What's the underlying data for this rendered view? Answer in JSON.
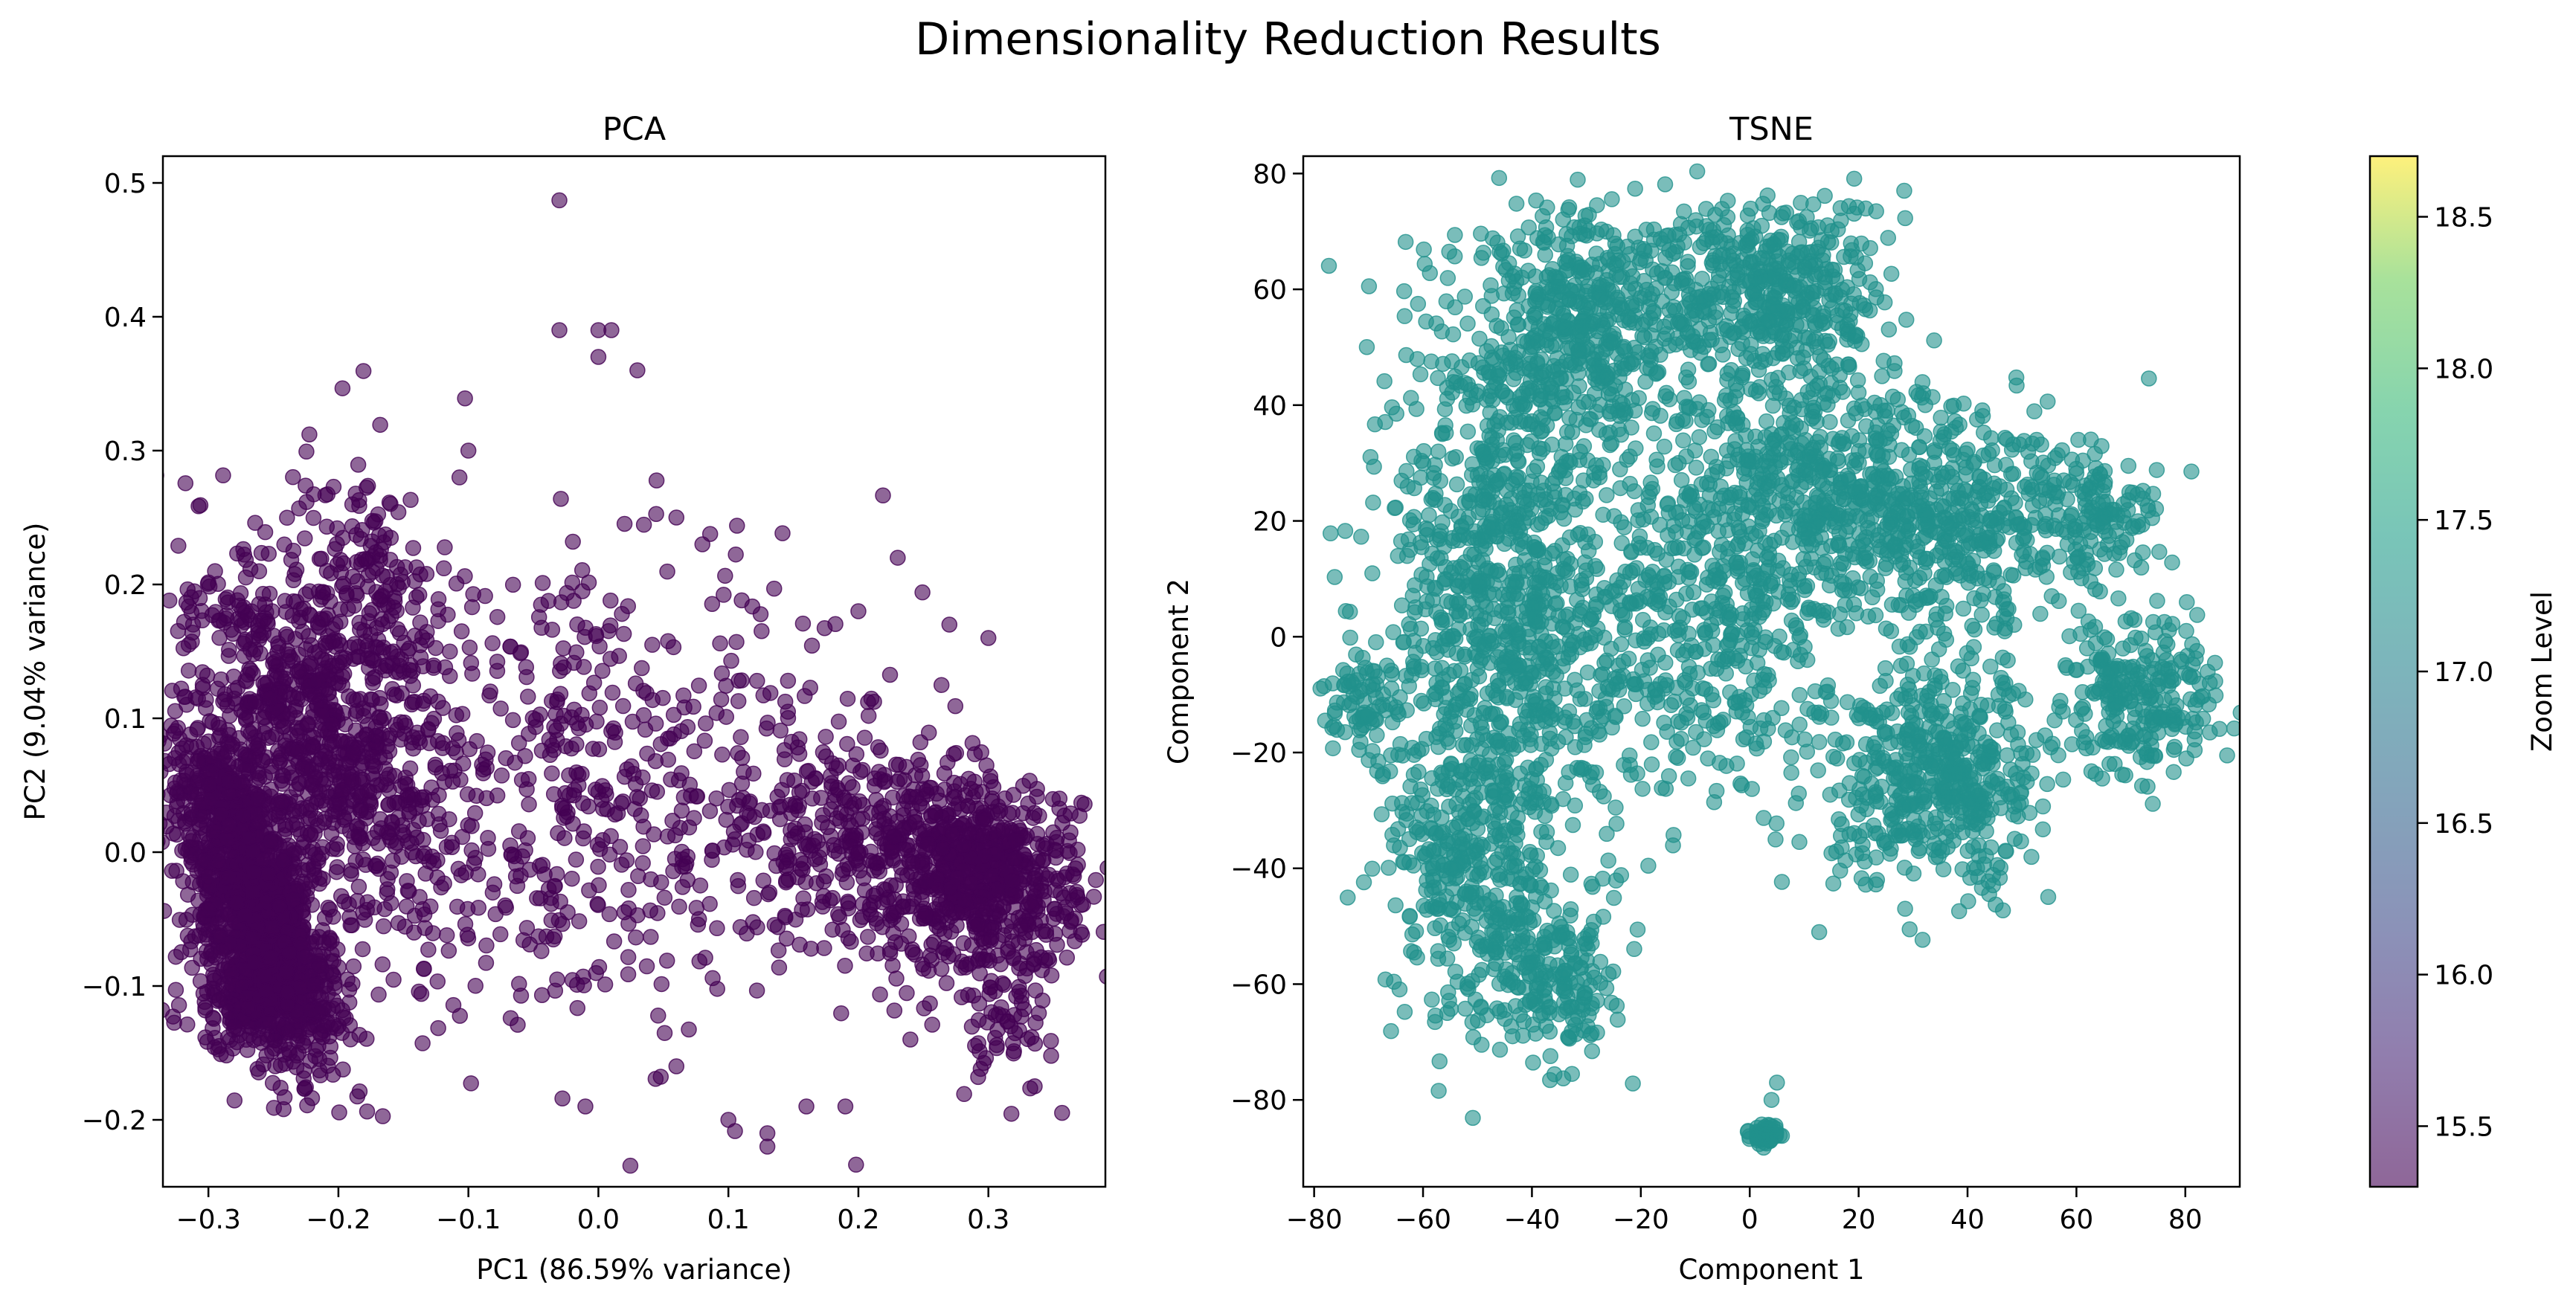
{
  "suptitle": "Dimensionality Reduction Results",
  "chart_data": [
    {
      "type": "scatter",
      "title": "PCA",
      "xlabel": "PC1 (86.59% variance)",
      "ylabel": "PC2 (9.04% variance)",
      "xlim": [
        -0.335,
        0.39
      ],
      "ylim": [
        -0.25,
        0.52
      ],
      "xticks": [
        -0.3,
        -0.2,
        -0.1,
        0.0,
        0.1,
        0.2,
        0.3
      ],
      "xtick_labels": [
        "−0.3",
        "−0.2",
        "−0.1",
        "0.0",
        "0.1",
        "0.2",
        "0.3"
      ],
      "yticks": [
        -0.2,
        -0.1,
        0.0,
        0.1,
        0.2,
        0.3,
        0.4,
        0.5
      ],
      "ytick_labels": [
        "−0.2",
        "−0.1",
        "0.0",
        "0.1",
        "0.2",
        "0.3",
        "0.4",
        "0.5"
      ],
      "grid": false,
      "marker_color": "#440154",
      "alpha": 0.6,
      "clusters": [
        {
          "cx": -0.265,
          "cy": -0.03,
          "sx": 0.022,
          "sy": 0.065,
          "n": 1400,
          "rot": 0.4
        },
        {
          "cx": -0.22,
          "cy": 0.09,
          "sx": 0.03,
          "sy": 0.08,
          "n": 700,
          "rot": 0.6
        },
        {
          "cx": -0.17,
          "cy": 0.18,
          "sx": 0.03,
          "sy": 0.06,
          "n": 250,
          "rot": 0.3
        },
        {
          "cx": -0.26,
          "cy": -0.11,
          "sx": 0.03,
          "sy": 0.02,
          "n": 300,
          "rot": 0.0
        },
        {
          "cx": 0.0,
          "cy": 0.04,
          "sx": 0.12,
          "sy": 0.08,
          "n": 600,
          "rot": 0.0
        },
        {
          "cx": 0.3,
          "cy": -0.02,
          "sx": 0.035,
          "sy": 0.035,
          "n": 600,
          "rot": 0.0
        },
        {
          "cx": 0.22,
          "cy": 0.0,
          "sx": 0.05,
          "sy": 0.04,
          "n": 350,
          "rot": -0.2
        },
        {
          "cx": 0.31,
          "cy": -0.12,
          "sx": 0.02,
          "sy": 0.03,
          "n": 60,
          "rot": 0.0
        }
      ],
      "outliers": [
        [
          -0.03,
          0.487
        ],
        [
          0.01,
          0.39
        ],
        [
          -0.03,
          0.39
        ],
        [
          0.0,
          0.37
        ],
        [
          0.03,
          0.36
        ],
        [
          0.0,
          0.39
        ],
        [
          -0.1,
          0.3
        ],
        [
          0.06,
          0.25
        ],
        [
          0.08,
          0.23
        ],
        [
          0.2,
          0.18
        ],
        [
          0.27,
          0.17
        ],
        [
          0.3,
          0.16
        ],
        [
          0.1,
          -0.2
        ],
        [
          0.13,
          -0.22
        ],
        [
          0.19,
          -0.19
        ],
        [
          0.16,
          -0.19
        ],
        [
          0.06,
          -0.16
        ],
        [
          -0.01,
          -0.19
        ],
        [
          0.24,
          -0.14
        ],
        [
          0.13,
          -0.21
        ]
      ]
    },
    {
      "type": "scatter",
      "title": "TSNE",
      "xlabel": "Component 1",
      "ylabel": "Component 2",
      "xlim": [
        -82,
        90
      ],
      "ylim": [
        -95,
        83
      ],
      "xticks": [
        -80,
        -60,
        -40,
        -20,
        0,
        20,
        40,
        60,
        80
      ],
      "xtick_labels": [
        "−80",
        "−60",
        "−40",
        "−20",
        "0",
        "20",
        "40",
        "60",
        "80"
      ],
      "yticks": [
        -80,
        -60,
        -40,
        -20,
        0,
        20,
        40,
        60,
        80
      ],
      "ytick_labels": [
        "−80",
        "−60",
        "−40",
        "−20",
        "0",
        "20",
        "40",
        "60",
        "80"
      ],
      "grid": false,
      "marker_color": "#21918c",
      "alpha": 0.6,
      "clusters": [
        {
          "cx": -45,
          "cy": 10,
          "sx": 10,
          "sy": 25,
          "n": 900
        },
        {
          "cx": -30,
          "cy": 55,
          "sx": 12,
          "sy": 10,
          "n": 500
        },
        {
          "cx": 5,
          "cy": 60,
          "sx": 10,
          "sy": 8,
          "n": 400
        },
        {
          "cx": -50,
          "cy": -40,
          "sx": 8,
          "sy": 15,
          "n": 400
        },
        {
          "cx": -35,
          "cy": -60,
          "sx": 5,
          "sy": 6,
          "n": 150
        },
        {
          "cx": -70,
          "cy": -12,
          "sx": 4,
          "sy": 4,
          "n": 80
        },
        {
          "cx": -10,
          "cy": 5,
          "sx": 12,
          "sy": 18,
          "n": 500
        },
        {
          "cx": 15,
          "cy": 25,
          "sx": 12,
          "sy": 12,
          "n": 500
        },
        {
          "cx": 40,
          "cy": 20,
          "sx": 12,
          "sy": 10,
          "n": 400
        },
        {
          "cx": 65,
          "cy": 20,
          "sx": 5,
          "sy": 5,
          "n": 100
        },
        {
          "cx": 35,
          "cy": -25,
          "sx": 10,
          "sy": 9,
          "n": 500
        },
        {
          "cx": 72,
          "cy": -10,
          "sx": 7,
          "sy": 7,
          "n": 250
        },
        {
          "cx": 3,
          "cy": -86,
          "sx": 1.5,
          "sy": 0.8,
          "n": 60
        }
      ],
      "outliers": [
        [
          5,
          -77
        ],
        [
          4,
          -80
        ]
      ]
    }
  ],
  "colorbar": {
    "label": "Zoom Level",
    "range": [
      15.3,
      18.7
    ],
    "ticks": [
      15.5,
      16.0,
      16.5,
      17.0,
      17.5,
      18.0,
      18.5
    ],
    "tick_labels": [
      "15.5",
      "16.0",
      "16.5",
      "17.0",
      "17.5",
      "18.0",
      "18.5"
    ],
    "colormap": "viridis",
    "alpha": 0.6
  }
}
